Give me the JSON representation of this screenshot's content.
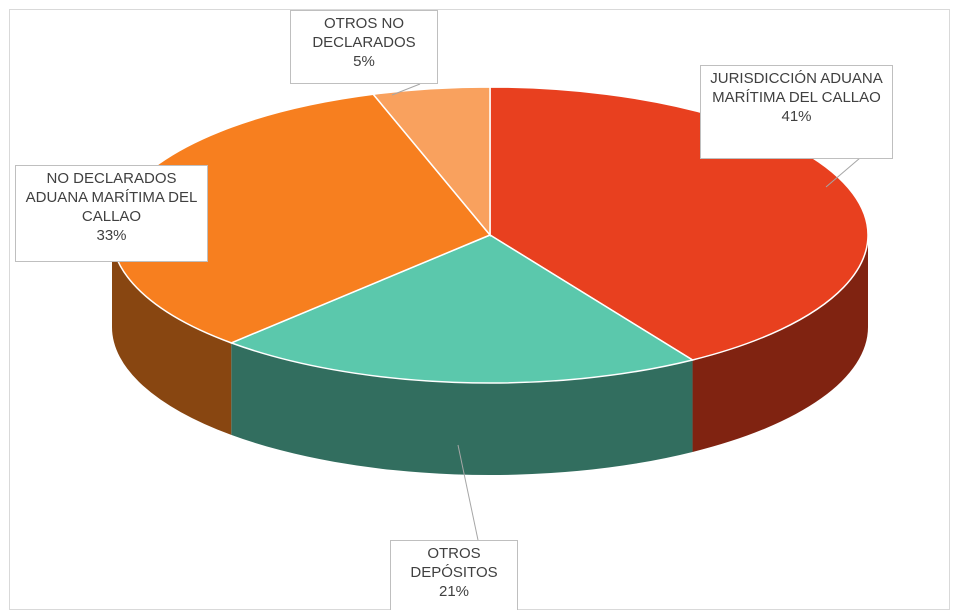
{
  "chart_data": {
    "type": "pie",
    "categories": [
      "JURISDICCIÓN ADUANA MARÍTIMA DEL CALLAO",
      "OTROS DEPÓSITOS",
      "NO DECLARADOS ADUANA MARÍTIMA DEL CALLAO",
      "OTROS NO DECLARADOS"
    ],
    "values": [
      41,
      21,
      33,
      5
    ],
    "value_labels": [
      "41%",
      "21%",
      "33%",
      "5%"
    ],
    "colors": [
      "#e8401f",
      "#5bc8ac",
      "#f77f1f",
      "#f9a15e"
    ]
  }
}
